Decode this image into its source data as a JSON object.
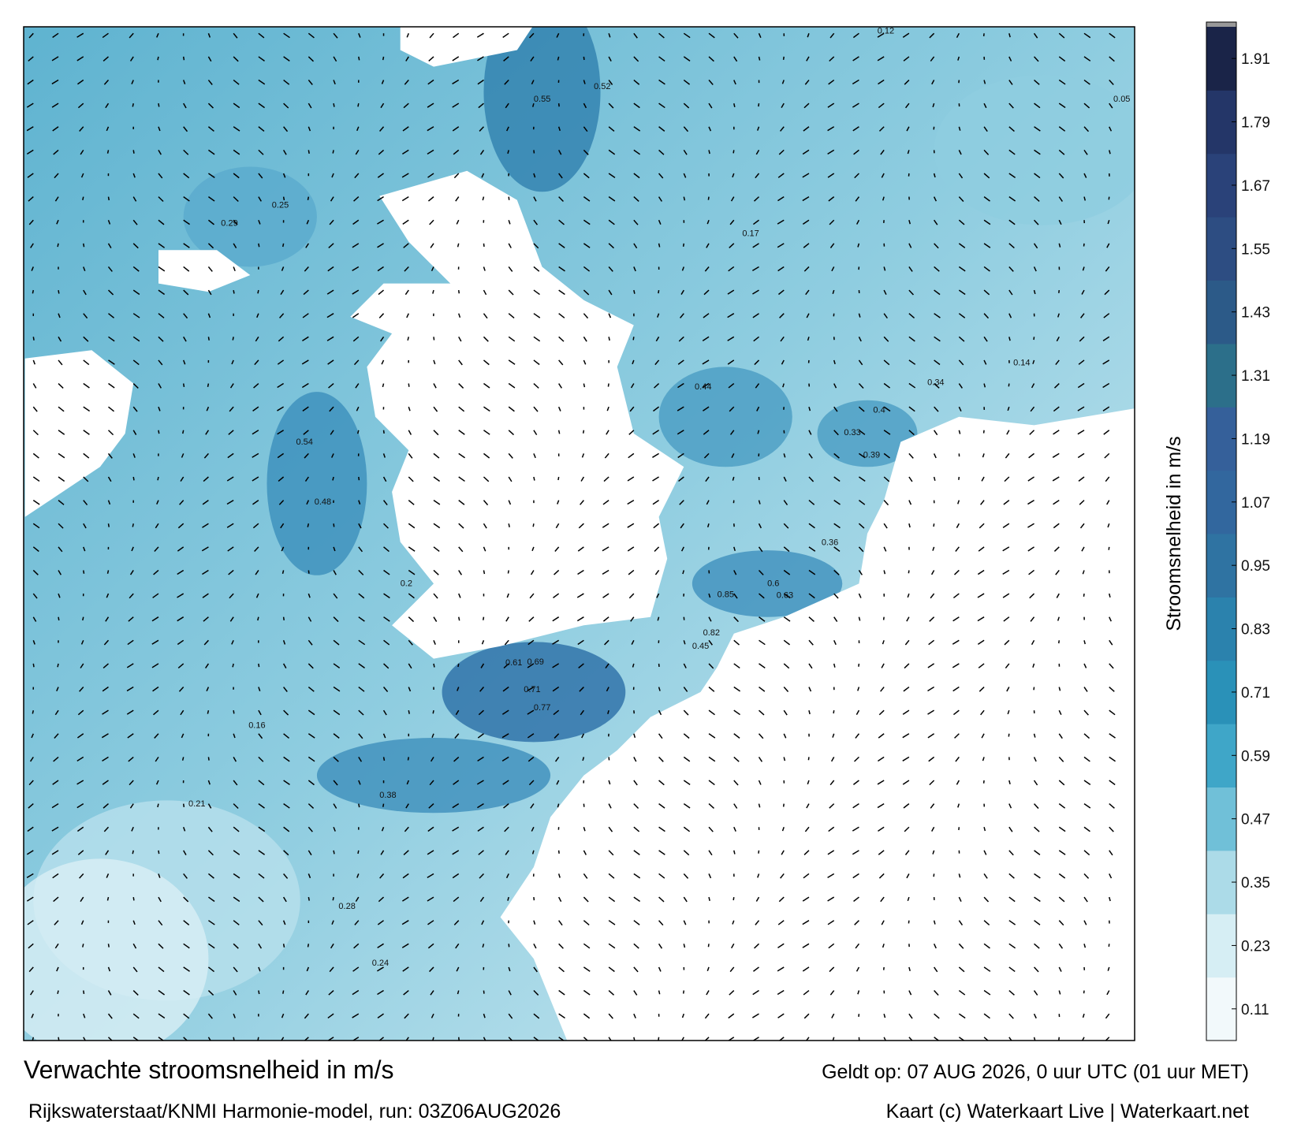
{
  "map": {
    "speed_labels": [
      "0.85",
      "0.69",
      "0.77",
      "0.54",
      "0.48",
      "0.55",
      "0.52",
      "0.44",
      "0.4",
      "0.36",
      "0.38",
      "0.29",
      "0.25",
      "0.2",
      "0.71",
      "0.61",
      "0.63",
      "0.82",
      "0.45",
      "0.6",
      "0.34",
      "0.39",
      "0.33",
      "0.21",
      "0.28",
      "0.24",
      "0.12",
      "0.05",
      "0.14",
      "0.17",
      "0.16"
    ]
  },
  "colorbar": {
    "label": "Stroomsnelheid in m/s",
    "range": [
      0.05,
      1.97
    ],
    "ticks": [
      0.11,
      0.23,
      0.35,
      0.47,
      0.59,
      0.71,
      0.83,
      0.95,
      1.07,
      1.19,
      1.31,
      1.43,
      1.55,
      1.67,
      1.79,
      1.91
    ]
  },
  "footer": {
    "title": "Verwachte stroomsnelheid in m/s",
    "valid": "Geldt op: 07 AUG 2026, 0 uur UTC (01 uur MET)",
    "model": "Rijkswaterstaat/KNMI Harmonie-model, run: 03Z06AUG2026",
    "credit": "Kaart (c) Waterkaart Live | Waterkaart.net"
  }
}
